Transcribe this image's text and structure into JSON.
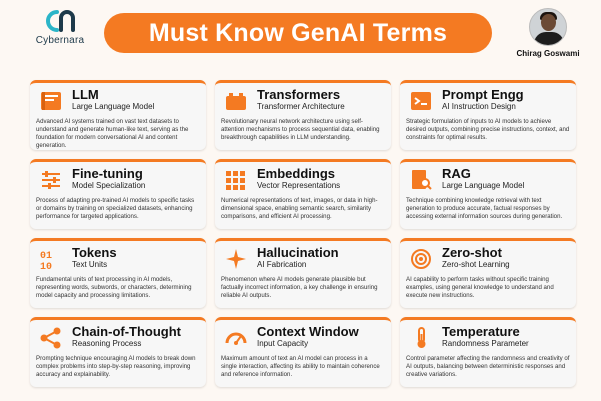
{
  "brand": {
    "name": "Cybernara"
  },
  "title": "Must Know GenAI Terms",
  "author": {
    "name": "Chirag Goswami"
  },
  "accent_color": "#f47a22",
  "terms": [
    {
      "title": "LLM",
      "subtitle": "Large Language Model",
      "icon": "book-icon",
      "description": "Advanced AI systems trained on vast text datasets to understand and generate human-like text, serving as the foundation for modern conversational AI and content generation."
    },
    {
      "title": "Transformers",
      "subtitle": "Transformer Architecture",
      "icon": "battery-icon",
      "description": "Revolutionary neural network architecture using self-attention mechanisms to process sequential data, enabling breakthrough capabilities in LLM understanding."
    },
    {
      "title": "Prompt Engg",
      "subtitle": "AI Instruction Design",
      "icon": "terminal-icon",
      "description": "Strategic formulation of inputs to AI models to achieve desired outputs, combining precise instructions, context, and constraints for optimal results."
    },
    {
      "title": "Fine-tuning",
      "subtitle": "Model Specialization",
      "icon": "sliders-icon",
      "description": "Process of adapting pre-trained AI models to specific tasks or domains by training on specialized datasets, enhancing performance for targeted applications."
    },
    {
      "title": "Embeddings",
      "subtitle": "Vector Representations",
      "icon": "vector-grid-icon",
      "description": "Numerical representations of text, images, or data in high-dimensional space, enabling semantic search, similarity comparisons, and efficient AI processing."
    },
    {
      "title": "RAG",
      "subtitle": "Large Language Model",
      "icon": "document-search-icon",
      "description": "Technique combining knowledge retrieval with text generation to produce accurate, factual responses by accessing external information sources during generation."
    },
    {
      "title": "Tokens",
      "subtitle": "Text Units",
      "icon": "binary-icon",
      "description": "Fundamental units of text processing in AI models, representing words, subwords, or characters, determining model capacity and processing limitations."
    },
    {
      "title": "Hallucination",
      "subtitle": "AI Fabrication",
      "icon": "sparkle-icon",
      "description": "Phenomenon where AI models generate plausible but factually incorrect information, a key challenge in ensuring reliable AI outputs."
    },
    {
      "title": "Zero-shot",
      "subtitle": "Zero-shot Learning",
      "icon": "target-icon",
      "description": "AI capability to perform tasks without specific training examples, using general knowledge to understand and execute new instructions."
    },
    {
      "title": "Chain-of-Thought",
      "subtitle": "Reasoning Process",
      "icon": "share-icon",
      "description": "Prompting technique encouraging AI models to break down complex problems into step-by-step reasoning, improving accuracy and explainability."
    },
    {
      "title": "Context Window",
      "subtitle": "Input Capacity",
      "icon": "gauge-icon",
      "description": "Maximum amount of text an AI model can process in a single interaction, affecting its ability to maintain coherence and reference information."
    },
    {
      "title": "Temperature",
      "subtitle": "Randomness Parameter",
      "icon": "thermometer-icon",
      "description": "Control parameter affecting the randomness and creativity of AI outputs, balancing between deterministic responses and creative variations."
    }
  ]
}
